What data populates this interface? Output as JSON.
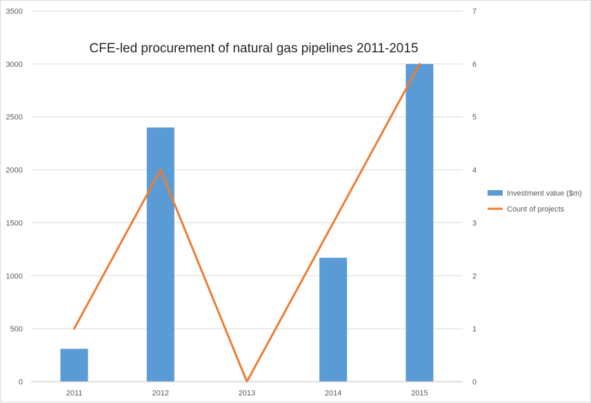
{
  "chart_data": {
    "type": "bar",
    "title": "CFE-led procurement of natural gas pipelines 2011-2015",
    "categories": [
      "2011",
      "2012",
      "2013",
      "2014",
      "2015"
    ],
    "series": [
      {
        "name": "Investment value ($m)",
        "type": "bar",
        "axis": "left",
        "color": "#5b9bd5",
        "values": [
          310,
          2400,
          0,
          1170,
          3000
        ]
      },
      {
        "name": "Count of projects",
        "type": "line",
        "axis": "right",
        "color": "#ed7d31",
        "values": [
          1,
          4,
          0,
          3,
          6
        ]
      }
    ],
    "y_left": {
      "range": [
        0,
        3500
      ],
      "ticks": [
        "0",
        "500",
        "1000",
        "1500",
        "2000",
        "2500",
        "3000",
        "3500"
      ]
    },
    "y_right": {
      "range": [
        0,
        7
      ],
      "ticks": [
        "0",
        "1",
        "2",
        "3",
        "4",
        "5",
        "6",
        "7"
      ]
    },
    "grid": true,
    "legend_position": "right"
  }
}
